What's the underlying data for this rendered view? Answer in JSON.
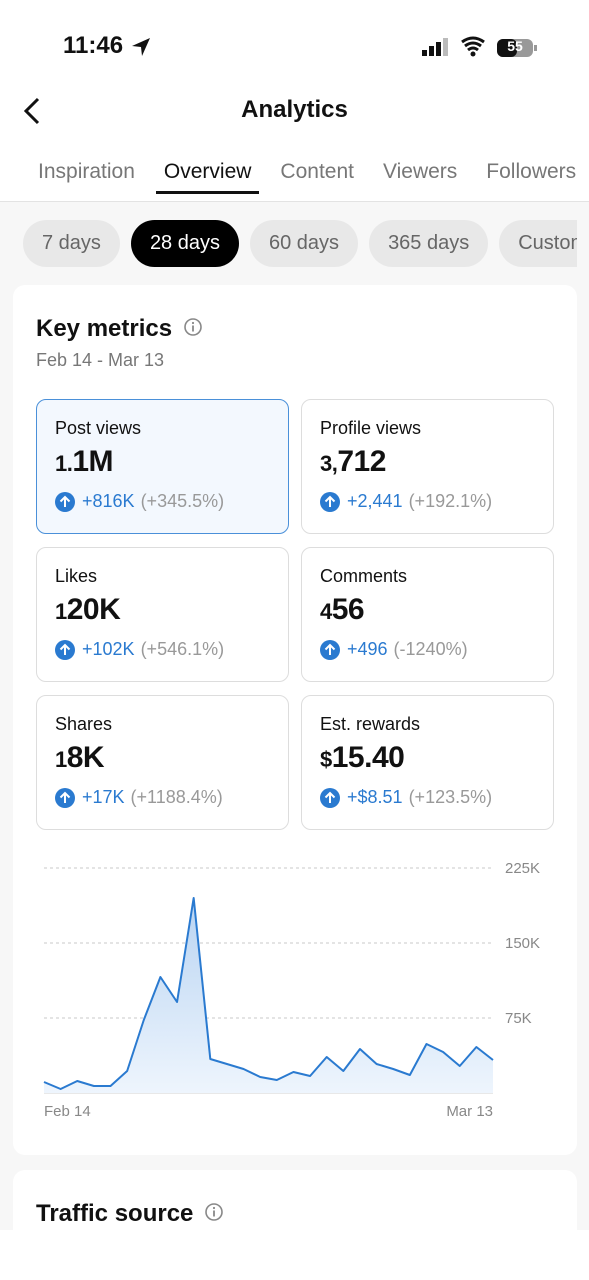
{
  "status_bar": {
    "time": "11:46",
    "battery": "55"
  },
  "header": {
    "title": "Analytics"
  },
  "tabs": [
    "Inspiration",
    "Overview",
    "Content",
    "Viewers",
    "Followers"
  ],
  "chips": [
    "7 days",
    "28 days",
    "60 days",
    "365 days",
    "Custom"
  ],
  "key_metrics": {
    "title": "Key metrics",
    "date_range": "Feb 14 - Mar 13",
    "metrics": [
      {
        "label": "Post views",
        "value": "1.1M",
        "change": "+816K",
        "percent": "(+345.5%)"
      },
      {
        "label": "Profile views",
        "value": "3,712",
        "change": "+2,441",
        "percent": "(+192.1%)"
      },
      {
        "label": "Likes",
        "value": "120K",
        "change": "+102K",
        "percent": "(+546.1%)"
      },
      {
        "label": "Comments",
        "value": "456",
        "change": "+496",
        "percent": "(-1240%)"
      },
      {
        "label": "Shares",
        "value": "18K",
        "change": "+17K",
        "percent": "(+1188.4%)"
      },
      {
        "label": "Est. rewards",
        "value": "$15.40",
        "change": "+$8.51",
        "percent": "(+123.5%)"
      }
    ]
  },
  "chart_data": {
    "type": "line",
    "categories": [
      "Feb 14",
      null,
      null,
      null,
      null,
      null,
      null,
      null,
      null,
      null,
      null,
      null,
      null,
      null,
      null,
      null,
      null,
      null,
      null,
      null,
      null,
      null,
      null,
      null,
      null,
      null,
      null,
      "Mar 13"
    ],
    "series": [
      {
        "name": "Post views",
        "color": "#2a7ad0",
        "values": [
          11000,
          4000,
          12000,
          7000,
          7000,
          22000,
          73000,
          116000,
          91000,
          195000,
          34000,
          29000,
          24000,
          16000,
          13000,
          21000,
          17000,
          36000,
          22000,
          44000,
          29000,
          24000,
          18000,
          49000,
          41000,
          27000,
          46000,
          33000
        ]
      }
    ],
    "ylim": [
      0,
      225000
    ],
    "yticks": [
      {
        "value": 75000,
        "label": "75K"
      },
      {
        "value": 150000,
        "label": "150K"
      },
      {
        "value": 225000,
        "label": "225K"
      }
    ],
    "grid": true
  },
  "traffic_source": {
    "title": "Traffic source"
  }
}
